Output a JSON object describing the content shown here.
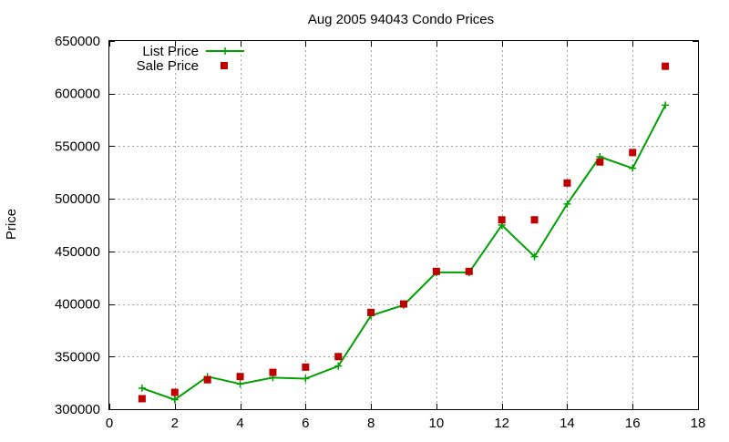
{
  "chart_data": {
    "type": "line",
    "title": "Aug 2005 94043 Condo Prices",
    "xlabel": "",
    "ylabel": "Price",
    "xlim": [
      0,
      18
    ],
    "ylim": [
      300000,
      650000
    ],
    "xticks": [
      0,
      2,
      4,
      6,
      8,
      10,
      12,
      14,
      16,
      18
    ],
    "yticks": [
      300000,
      350000,
      400000,
      450000,
      500000,
      550000,
      600000,
      650000
    ],
    "grid": true,
    "legend_position": "top-left",
    "series": [
      {
        "name": "List Price",
        "style": "line+cross",
        "color": "#00a000",
        "x": [
          1,
          2,
          3,
          4,
          5,
          6,
          7,
          8,
          9,
          10,
          11,
          12,
          13,
          14,
          15,
          16,
          17
        ],
        "y": [
          320000,
          309000,
          331000,
          324000,
          330000,
          329000,
          341000,
          389000,
          399000,
          430000,
          430000,
          475000,
          445000,
          495000,
          540000,
          529000,
          589000
        ]
      },
      {
        "name": "Sale Price",
        "style": "square",
        "color": "#c00000",
        "x": [
          1,
          2,
          3,
          4,
          5,
          6,
          7,
          8,
          9,
          10,
          11,
          12,
          13,
          14,
          15,
          16,
          17
        ],
        "y": [
          310000,
          316000,
          328000,
          331000,
          335000,
          340000,
          350000,
          392000,
          400000,
          431000,
          431000,
          480000,
          480000,
          515000,
          535000,
          544000,
          626000
        ]
      }
    ]
  }
}
